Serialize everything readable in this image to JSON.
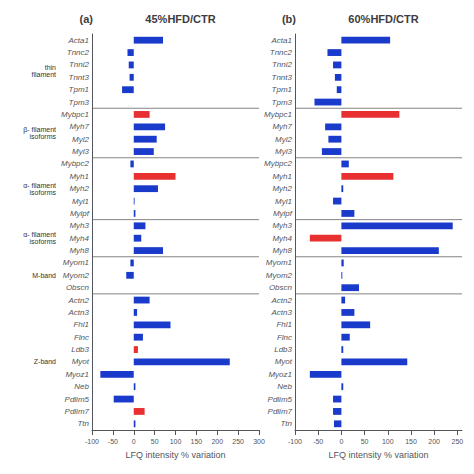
{
  "chart_data": [
    {
      "type": "bar",
      "orientation": "horizontal",
      "title": "45%HFD/CTR",
      "annotations": [
        "(a)"
      ],
      "xlabel": "LFQ intensity % variation",
      "categories": [
        "Acta1",
        "Tnnc2",
        "Tnni2",
        "Tnnt3",
        "Tpm1",
        "Tpm3",
        "Mybpc1",
        "Myh7",
        "Myl2",
        "Myl3",
        "Mybpc2",
        "Myh1",
        "Myh2",
        "Myl1",
        "Mylpf",
        "Myh3",
        "Myh4",
        "Myh8",
        "Myom1",
        "Myom2",
        "Obscn",
        "Actn2",
        "Actn3",
        "Fhl1",
        "Flnc",
        "Ldb3",
        "Myot",
        "Myoz1",
        "Neb",
        "Pdlim5",
        "Pdlim7",
        "Ttn"
      ],
      "values": [
        70,
        -15,
        -12,
        -10,
        -28,
        0,
        38,
        75,
        55,
        48,
        -8,
        100,
        58,
        2,
        4,
        28,
        18,
        70,
        -8,
        -18,
        0,
        38,
        8,
        88,
        22,
        10,
        230,
        -80,
        4,
        -48,
        26,
        4
      ],
      "colors": [
        "#1a3acc",
        "#1a3acc",
        "#1a3acc",
        "#1a3acc",
        "#1a3acc",
        "#1a3acc",
        "#e83030",
        "#1a3acc",
        "#1a3acc",
        "#1a3acc",
        "#1a3acc",
        "#e83030",
        "#1a3acc",
        "#1a3acc",
        "#1a3acc",
        "#1a3acc",
        "#1a3acc",
        "#1a3acc",
        "#1a3acc",
        "#1a3acc",
        "#1a3acc",
        "#1a3acc",
        "#1a3acc",
        "#1a3acc",
        "#1a3acc",
        "#e83030",
        "#1a3acc",
        "#1a3acc",
        "#1a3acc",
        "#1a3acc",
        "#e83030",
        "#1a3acc"
      ],
      "xlim": [
        -100,
        300
      ],
      "xticks": [
        -100,
        -50,
        0,
        50,
        100,
        150,
        200,
        250,
        300
      ],
      "groups": [
        {
          "label": "thin\nfilament",
          "categories": [
            "Acta1",
            "Tnnc2",
            "Tnni2",
            "Tnnt3",
            "Tpm1",
            "Tpm3"
          ]
        },
        {
          "label": "β- filament\nisoforms",
          "categories": [
            "Mybpc1",
            "Myh7",
            "Myl2",
            "Myl3"
          ]
        },
        {
          "label": "α- filament\nisoforms",
          "categories": [
            "Mybpc2",
            "Myh1",
            "Myh2",
            "Myl1",
            "Mylpf"
          ]
        },
        {
          "label": "α- filament\nisoforms",
          "categories": [
            "Myh3",
            "Myh4",
            "Myh8"
          ]
        },
        {
          "label": "M-band",
          "categories": [
            "Myom1",
            "Myom2",
            "Obscn"
          ]
        },
        {
          "label": "Z-band",
          "categories": [
            "Actn2",
            "Actn3",
            "Fhl1",
            "Flnc",
            "Ldb3",
            "Myot",
            "Myoz1",
            "Neb",
            "Pdlim5",
            "Pdlim7",
            "Ttn"
          ]
        }
      ]
    },
    {
      "type": "bar",
      "orientation": "horizontal",
      "title": "60%HFD/CTR",
      "annotations": [
        "(b)"
      ],
      "xlabel": "LFQ intensity % variation",
      "categories": [
        "Acta1",
        "Tnnc2",
        "Tnni2",
        "Tnnt3",
        "Tpm1",
        "Tpm3",
        "Mybpc1",
        "Myh7",
        "Myl2",
        "Myl3",
        "Mybpc2",
        "Myh1",
        "Myh2",
        "Myl1",
        "Mylpf",
        "Myh3",
        "Myh4",
        "Myh8",
        "Myom1",
        "Myom2",
        "Obscn",
        "Actn2",
        "Actn3",
        "Fhl1",
        "Flnc",
        "Ldb3",
        "Myot",
        "Myoz1",
        "Neb",
        "Pdlim5",
        "Pdlim7",
        "Ttn"
      ],
      "values": [
        105,
        -30,
        -18,
        -14,
        -10,
        -58,
        125,
        -35,
        -28,
        -42,
        16,
        112,
        4,
        -18,
        28,
        240,
        -68,
        210,
        5,
        2,
        38,
        8,
        28,
        62,
        18,
        4,
        142,
        -68,
        4,
        -18,
        -18,
        -16
      ],
      "colors": [
        "#1a3acc",
        "#1a3acc",
        "#1a3acc",
        "#1a3acc",
        "#1a3acc",
        "#1a3acc",
        "#e83030",
        "#1a3acc",
        "#1a3acc",
        "#1a3acc",
        "#1a3acc",
        "#e83030",
        "#1a3acc",
        "#1a3acc",
        "#1a3acc",
        "#1a3acc",
        "#e83030",
        "#1a3acc",
        "#1a3acc",
        "#1a3acc",
        "#1a3acc",
        "#1a3acc",
        "#1a3acc",
        "#1a3acc",
        "#1a3acc",
        "#1a3acc",
        "#1a3acc",
        "#1a3acc",
        "#1a3acc",
        "#1a3acc",
        "#1a3acc",
        "#1a3acc"
      ],
      "xlim": [
        -100,
        260
      ],
      "xticks": [
        -100,
        -50,
        0,
        50,
        100,
        150,
        200,
        250
      ]
    }
  ]
}
